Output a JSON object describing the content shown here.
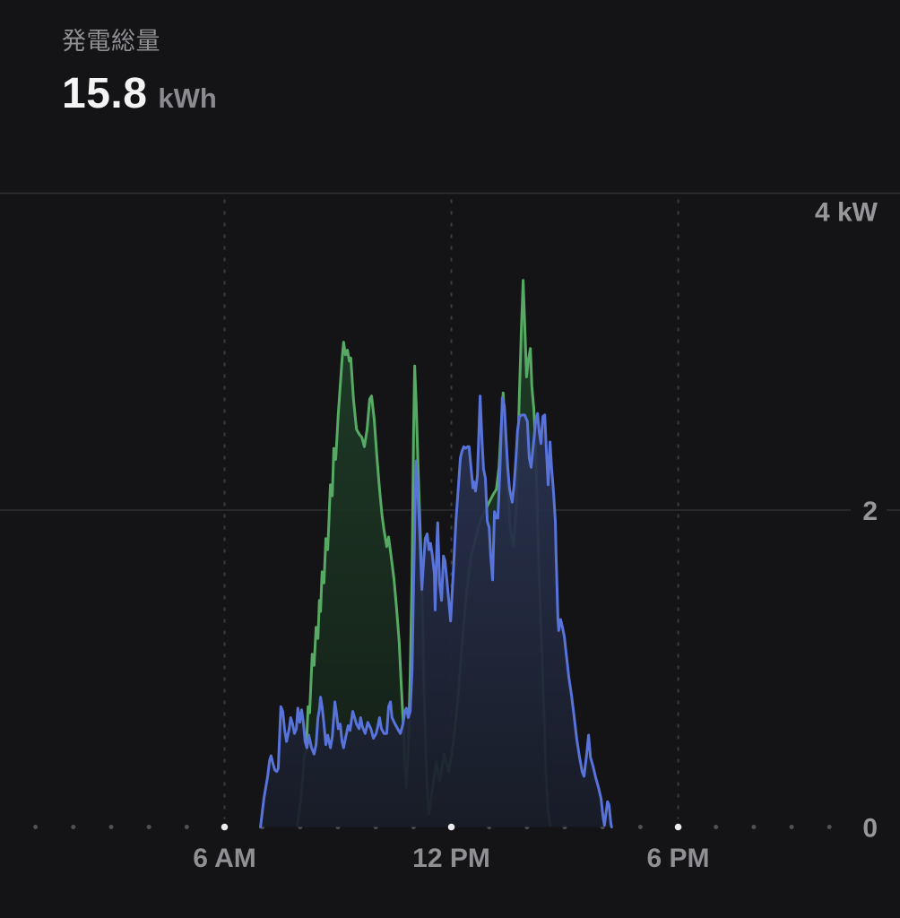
{
  "header": {
    "title": "発電総量",
    "value": "15.8",
    "unit": "kWh"
  },
  "colors": {
    "background": "#141416",
    "gridline": "#303033",
    "dashed_gridline": "#3c3c3f",
    "minor_dot": "#505055",
    "major_dot": "#ececee",
    "axis_label": "#96969b",
    "title_text": "#8f8f94",
    "value_text": "#f4f4f5",
    "green_line": "#57aa63",
    "blue_line": "#5873d9"
  },
  "chart_data": {
    "type": "area",
    "title": "発電総量",
    "total": {
      "value": 15.8,
      "unit": "kWh"
    },
    "legend": "none",
    "grid": "horizontal solid at 2 and 4 kW, dashed vertical at labeled hours, dotted baseline",
    "x_axis": {
      "unit": "hour-of-day",
      "xlim_hours": [
        0,
        24
      ],
      "ticks": [
        {
          "hour": 6,
          "label": "6 AM"
        },
        {
          "hour": 12,
          "label": "12 PM"
        },
        {
          "hour": 18,
          "label": "6 PM"
        }
      ]
    },
    "y_axis": {
      "unit": "kW",
      "ylim": [
        0,
        4
      ],
      "ticks": [
        {
          "value": 4,
          "label": "4 kW",
          "placement": "below-line"
        },
        {
          "value": 2,
          "label": "2",
          "placement": "on-line"
        },
        {
          "value": 0,
          "label": "0",
          "placement": "on-line"
        }
      ]
    },
    "series": [
      {
        "name": "series-green",
        "color": "#57aa63",
        "fill_top": "#1f4029",
        "fill_bottom": "#141e17",
        "points": [
          [
            7.92,
            0.01
          ],
          [
            7.99,
            0.12
          ],
          [
            8.06,
            0.29
          ],
          [
            8.11,
            0.45
          ],
          [
            8.16,
            0.48
          ],
          [
            8.21,
            0.76
          ],
          [
            8.25,
            0.72
          ],
          [
            8.32,
            1.09
          ],
          [
            8.37,
            1.02
          ],
          [
            8.42,
            1.26
          ],
          [
            8.47,
            1.19
          ],
          [
            8.51,
            1.43
          ],
          [
            8.54,
            1.36
          ],
          [
            8.58,
            1.61
          ],
          [
            8.63,
            1.54
          ],
          [
            8.68,
            1.82
          ],
          [
            8.73,
            1.75
          ],
          [
            8.8,
            2.16
          ],
          [
            8.85,
            2.09
          ],
          [
            8.89,
            2.39
          ],
          [
            8.94,
            2.32
          ],
          [
            9.01,
            2.61
          ],
          [
            9.06,
            2.78
          ],
          [
            9.11,
            2.95
          ],
          [
            9.15,
            3.06
          ],
          [
            9.2,
            2.98
          ],
          [
            9.25,
            3.01
          ],
          [
            9.3,
            2.94
          ],
          [
            9.34,
            2.96
          ],
          [
            9.41,
            2.7
          ],
          [
            9.49,
            2.51
          ],
          [
            9.56,
            2.48
          ],
          [
            9.63,
            2.46
          ],
          [
            9.7,
            2.4
          ],
          [
            9.77,
            2.51
          ],
          [
            9.84,
            2.7
          ],
          [
            9.89,
            2.72
          ],
          [
            9.96,
            2.57
          ],
          [
            10.03,
            2.34
          ],
          [
            10.1,
            2.13
          ],
          [
            10.17,
            1.96
          ],
          [
            10.22,
            1.87
          ],
          [
            10.29,
            1.77
          ],
          [
            10.34,
            1.83
          ],
          [
            10.41,
            1.7
          ],
          [
            10.48,
            1.57
          ],
          [
            10.55,
            1.38
          ],
          [
            10.62,
            1.17
          ],
          [
            10.67,
            0.92
          ],
          [
            10.72,
            0.69
          ],
          [
            10.77,
            0.41
          ],
          [
            10.81,
            0.25
          ],
          [
            10.86,
            0.48
          ],
          [
            10.91,
            0.96
          ],
          [
            10.96,
            1.6
          ],
          [
            11.0,
            2.5
          ],
          [
            11.03,
            2.91
          ],
          [
            11.07,
            2.67
          ],
          [
            11.12,
            2.27
          ],
          [
            11.17,
            1.91
          ],
          [
            11.22,
            1.54
          ],
          [
            11.26,
            1.03
          ],
          [
            11.31,
            0.58
          ],
          [
            11.36,
            0.25
          ],
          [
            11.41,
            0.08
          ],
          [
            11.5,
            0.24
          ],
          [
            11.6,
            0.41
          ],
          [
            11.69,
            0.29
          ],
          [
            11.81,
            0.46
          ],
          [
            11.93,
            0.35
          ],
          [
            12.05,
            0.52
          ],
          [
            12.17,
            0.8
          ],
          [
            12.28,
            1.14
          ],
          [
            12.4,
            1.48
          ],
          [
            12.52,
            1.71
          ],
          [
            12.64,
            1.82
          ],
          [
            12.76,
            1.93
          ],
          [
            12.88,
            1.99
          ],
          [
            13.0,
            2.05
          ],
          [
            13.11,
            2.1
          ],
          [
            13.19,
            2.13
          ],
          [
            13.26,
            2.27
          ],
          [
            13.3,
            2.44
          ],
          [
            13.37,
            2.74
          ],
          [
            13.42,
            2.5
          ],
          [
            13.49,
            2.16
          ],
          [
            13.56,
            1.88
          ],
          [
            13.64,
            1.77
          ],
          [
            13.71,
            1.99
          ],
          [
            13.75,
            2.27
          ],
          [
            13.8,
            2.73
          ],
          [
            13.85,
            3.12
          ],
          [
            13.9,
            3.45
          ],
          [
            13.94,
            3.18
          ],
          [
            13.99,
            2.84
          ],
          [
            14.04,
            2.95
          ],
          [
            14.09,
            3.02
          ],
          [
            14.13,
            2.78
          ],
          [
            14.18,
            2.64
          ],
          [
            14.23,
            2.39
          ],
          [
            14.28,
            1.93
          ],
          [
            14.32,
            1.6
          ],
          [
            14.37,
            1.26
          ],
          [
            14.42,
            0.92
          ],
          [
            14.47,
            0.58
          ],
          [
            14.51,
            0.29
          ],
          [
            14.56,
            0.1
          ],
          [
            14.61,
            0.01
          ]
        ]
      },
      {
        "name": "series-blue",
        "color": "#5873d9",
        "fill_top": "#303a60",
        "fill_bottom": "#181c28",
        "points": [
          [
            6.95,
            0.0
          ],
          [
            7.0,
            0.1
          ],
          [
            7.04,
            0.18
          ],
          [
            7.09,
            0.25
          ],
          [
            7.14,
            0.32
          ],
          [
            7.19,
            0.42
          ],
          [
            7.23,
            0.45
          ],
          [
            7.28,
            0.4
          ],
          [
            7.33,
            0.36
          ],
          [
            7.38,
            0.35
          ],
          [
            7.42,
            0.37
          ],
          [
            7.49,
            0.76
          ],
          [
            7.54,
            0.73
          ],
          [
            7.59,
            0.61
          ],
          [
            7.64,
            0.54
          ],
          [
            7.71,
            0.62
          ],
          [
            7.75,
            0.69
          ],
          [
            7.8,
            0.65
          ],
          [
            7.85,
            0.59
          ],
          [
            7.9,
            0.62
          ],
          [
            7.94,
            0.75
          ],
          [
            7.99,
            0.66
          ],
          [
            8.04,
            0.74
          ],
          [
            8.09,
            0.65
          ],
          [
            8.13,
            0.54
          ],
          [
            8.18,
            0.5
          ],
          [
            8.23,
            0.58
          ],
          [
            8.3,
            0.5
          ],
          [
            8.37,
            0.46
          ],
          [
            8.42,
            0.52
          ],
          [
            8.47,
            0.69
          ],
          [
            8.51,
            0.74
          ],
          [
            8.54,
            0.82
          ],
          [
            8.58,
            0.76
          ],
          [
            8.63,
            0.65
          ],
          [
            8.68,
            0.52
          ],
          [
            8.73,
            0.58
          ],
          [
            8.8,
            0.5
          ],
          [
            8.85,
            0.57
          ],
          [
            8.92,
            0.79
          ],
          [
            8.96,
            0.72
          ],
          [
            9.01,
            0.62
          ],
          [
            9.06,
            0.65
          ],
          [
            9.11,
            0.54
          ],
          [
            9.15,
            0.5
          ],
          [
            9.2,
            0.56
          ],
          [
            9.27,
            0.64
          ],
          [
            9.32,
            0.61
          ],
          [
            9.39,
            0.73
          ],
          [
            9.44,
            0.69
          ],
          [
            9.49,
            0.65
          ],
          [
            9.56,
            0.62
          ],
          [
            9.6,
            0.69
          ],
          [
            9.65,
            0.63
          ],
          [
            9.72,
            0.59
          ],
          [
            9.79,
            0.66
          ],
          [
            9.87,
            0.62
          ],
          [
            9.94,
            0.56
          ],
          [
            10.01,
            0.59
          ],
          [
            10.05,
            0.63
          ],
          [
            10.1,
            0.69
          ],
          [
            10.15,
            0.62
          ],
          [
            10.22,
            0.59
          ],
          [
            10.29,
            0.59
          ],
          [
            10.34,
            0.76
          ],
          [
            10.39,
            0.79
          ],
          [
            10.43,
            0.69
          ],
          [
            10.51,
            0.65
          ],
          [
            10.58,
            0.62
          ],
          [
            10.65,
            0.59
          ],
          [
            10.72,
            0.65
          ],
          [
            10.77,
            0.73
          ],
          [
            10.81,
            0.75
          ],
          [
            10.86,
            0.69
          ],
          [
            10.91,
            0.73
          ],
          [
            10.96,
            0.99
          ],
          [
            11.0,
            1.54
          ],
          [
            11.05,
            2.13
          ],
          [
            11.07,
            2.31
          ],
          [
            11.12,
            2.08
          ],
          [
            11.17,
            1.82
          ],
          [
            11.22,
            1.5
          ],
          [
            11.26,
            1.65
          ],
          [
            11.31,
            1.82
          ],
          [
            11.36,
            1.85
          ],
          [
            11.41,
            1.75
          ],
          [
            11.45,
            1.79
          ],
          [
            11.5,
            1.71
          ],
          [
            11.55,
            1.6
          ],
          [
            11.57,
            1.37
          ],
          [
            11.62,
            1.82
          ],
          [
            11.64,
            1.92
          ],
          [
            11.69,
            1.54
          ],
          [
            11.74,
            1.43
          ],
          [
            11.79,
            1.71
          ],
          [
            11.83,
            1.68
          ],
          [
            11.88,
            1.56
          ],
          [
            11.93,
            1.43
          ],
          [
            11.98,
            1.3
          ],
          [
            12.05,
            1.6
          ],
          [
            12.12,
            1.93
          ],
          [
            12.19,
            2.16
          ],
          [
            12.24,
            2.33
          ],
          [
            12.28,
            2.37
          ],
          [
            12.33,
            2.4
          ],
          [
            12.38,
            2.39
          ],
          [
            12.43,
            2.4
          ],
          [
            12.47,
            2.4
          ],
          [
            12.52,
            2.27
          ],
          [
            12.57,
            2.14
          ],
          [
            12.59,
            2.18
          ],
          [
            12.64,
            2.12
          ],
          [
            12.69,
            2.22
          ],
          [
            12.73,
            2.5
          ],
          [
            12.76,
            2.72
          ],
          [
            12.81,
            2.44
          ],
          [
            12.85,
            2.26
          ],
          [
            12.9,
            2.2
          ],
          [
            12.95,
            1.93
          ],
          [
            13.0,
            1.89
          ],
          [
            13.04,
            1.71
          ],
          [
            13.09,
            1.56
          ],
          [
            13.14,
            1.99
          ],
          [
            13.19,
            1.95
          ],
          [
            13.23,
            1.95
          ],
          [
            13.28,
            2.22
          ],
          [
            13.35,
            2.71
          ],
          [
            13.4,
            2.66
          ],
          [
            13.45,
            2.44
          ],
          [
            13.49,
            2.27
          ],
          [
            13.54,
            2.13
          ],
          [
            13.61,
            2.05
          ],
          [
            13.66,
            2.16
          ],
          [
            13.71,
            2.33
          ],
          [
            13.75,
            2.5
          ],
          [
            13.8,
            2.59
          ],
          [
            13.87,
            2.6
          ],
          [
            13.94,
            2.6
          ],
          [
            14.01,
            2.56
          ],
          [
            14.06,
            2.33
          ],
          [
            14.11,
            2.27
          ],
          [
            14.16,
            2.39
          ],
          [
            14.23,
            2.56
          ],
          [
            14.28,
            2.61
          ],
          [
            14.32,
            2.5
          ],
          [
            14.37,
            2.42
          ],
          [
            14.42,
            2.59
          ],
          [
            14.47,
            2.6
          ],
          [
            14.51,
            2.39
          ],
          [
            14.56,
            2.16
          ],
          [
            14.61,
            2.43
          ],
          [
            14.65,
            2.27
          ],
          [
            14.7,
            2.12
          ],
          [
            14.75,
            1.93
          ],
          [
            14.77,
            1.73
          ],
          [
            14.82,
            1.31
          ],
          [
            14.84,
            1.24
          ],
          [
            14.89,
            1.31
          ],
          [
            14.94,
            1.26
          ],
          [
            14.99,
            1.2
          ],
          [
            15.03,
            1.11
          ],
          [
            15.11,
            0.94
          ],
          [
            15.18,
            0.83
          ],
          [
            15.25,
            0.69
          ],
          [
            15.32,
            0.55
          ],
          [
            15.39,
            0.44
          ],
          [
            15.46,
            0.35
          ],
          [
            15.51,
            0.32
          ],
          [
            15.58,
            0.46
          ],
          [
            15.63,
            0.58
          ],
          [
            15.68,
            0.44
          ],
          [
            15.75,
            0.38
          ],
          [
            15.82,
            0.31
          ],
          [
            15.89,
            0.25
          ],
          [
            15.96,
            0.18
          ],
          [
            16.01,
            0.07
          ],
          [
            16.05,
            0.01
          ],
          [
            16.13,
            0.16
          ],
          [
            16.17,
            0.14
          ],
          [
            16.22,
            0.02
          ],
          [
            16.24,
            0.0
          ]
        ]
      }
    ]
  }
}
